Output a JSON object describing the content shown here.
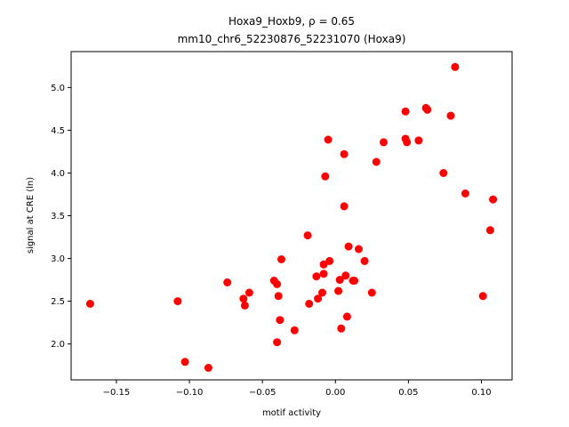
{
  "chart_data": {
    "type": "scatter",
    "title_line1": "Hoxa9_Hoxb9, ρ = 0.65",
    "title_line2": "mm10_chr6_52230876_52231070 (Hoxa9)",
    "xlabel": "motif activity",
    "ylabel": "signal at CRE (ln)",
    "xlim": [
      -0.181,
      0.121
    ],
    "ylim": [
      1.58,
      5.42
    ],
    "xticks": [
      {
        "value": -0.15,
        "label": "−0.15"
      },
      {
        "value": -0.1,
        "label": "−0.10"
      },
      {
        "value": -0.05,
        "label": "−0.05"
      },
      {
        "value": 0.0,
        "label": "0.00"
      },
      {
        "value": 0.05,
        "label": "0.05"
      },
      {
        "value": 0.1,
        "label": "0.10"
      }
    ],
    "yticks": [
      {
        "value": 2.0,
        "label": "2.0"
      },
      {
        "value": 2.5,
        "label": "2.5"
      },
      {
        "value": 3.0,
        "label": "3.0"
      },
      {
        "value": 3.5,
        "label": "3.5"
      },
      {
        "value": 4.0,
        "label": "4.0"
      },
      {
        "value": 4.5,
        "label": "4.5"
      },
      {
        "value": 5.0,
        "label": "5.0"
      }
    ],
    "marker_color": "#ff0000",
    "points": [
      {
        "x": -0.168,
        "y": 2.47
      },
      {
        "x": -0.108,
        "y": 2.5
      },
      {
        "x": -0.103,
        "y": 1.79
      },
      {
        "x": -0.087,
        "y": 1.72
      },
      {
        "x": -0.074,
        "y": 2.72
      },
      {
        "x": -0.063,
        "y": 2.53
      },
      {
        "x": -0.062,
        "y": 2.45
      },
      {
        "x": -0.059,
        "y": 2.6
      },
      {
        "x": -0.042,
        "y": 2.74
      },
      {
        "x": -0.04,
        "y": 2.7
      },
      {
        "x": -0.039,
        "y": 2.56
      },
      {
        "x": -0.038,
        "y": 2.28
      },
      {
        "x": -0.04,
        "y": 2.02
      },
      {
        "x": -0.037,
        "y": 2.99
      },
      {
        "x": -0.028,
        "y": 2.16
      },
      {
        "x": -0.019,
        "y": 3.27
      },
      {
        "x": -0.018,
        "y": 2.47
      },
      {
        "x": -0.013,
        "y": 2.79
      },
      {
        "x": -0.012,
        "y": 2.53
      },
      {
        "x": -0.009,
        "y": 2.6
      },
      {
        "x": -0.008,
        "y": 2.82
      },
      {
        "x": -0.008,
        "y": 2.93
      },
      {
        "x": -0.007,
        "y": 3.96
      },
      {
        "x": -0.005,
        "y": 4.39
      },
      {
        "x": -0.004,
        "y": 2.97
      },
      {
        "x": 0.002,
        "y": 2.62
      },
      {
        "x": 0.003,
        "y": 2.75
      },
      {
        "x": 0.004,
        "y": 2.18
      },
      {
        "x": 0.006,
        "y": 3.61
      },
      {
        "x": 0.006,
        "y": 4.22
      },
      {
        "x": 0.007,
        "y": 2.8
      },
      {
        "x": 0.008,
        "y": 2.32
      },
      {
        "x": 0.009,
        "y": 3.14
      },
      {
        "x": 0.012,
        "y": 2.74
      },
      {
        "x": 0.013,
        "y": 2.74
      },
      {
        "x": 0.016,
        "y": 3.11
      },
      {
        "x": 0.02,
        "y": 2.97
      },
      {
        "x": 0.025,
        "y": 2.6
      },
      {
        "x": 0.028,
        "y": 4.13
      },
      {
        "x": 0.033,
        "y": 4.36
      },
      {
        "x": 0.048,
        "y": 4.72
      },
      {
        "x": 0.048,
        "y": 4.4
      },
      {
        "x": 0.049,
        "y": 4.36
      },
      {
        "x": 0.057,
        "y": 4.38
      },
      {
        "x": 0.062,
        "y": 4.76
      },
      {
        "x": 0.063,
        "y": 4.74
      },
      {
        "x": 0.074,
        "y": 4.0
      },
      {
        "x": 0.079,
        "y": 4.67
      },
      {
        "x": 0.082,
        "y": 5.24
      },
      {
        "x": 0.089,
        "y": 3.76
      },
      {
        "x": 0.101,
        "y": 2.56
      },
      {
        "x": 0.106,
        "y": 3.33
      },
      {
        "x": 0.108,
        "y": 3.69
      }
    ]
  }
}
